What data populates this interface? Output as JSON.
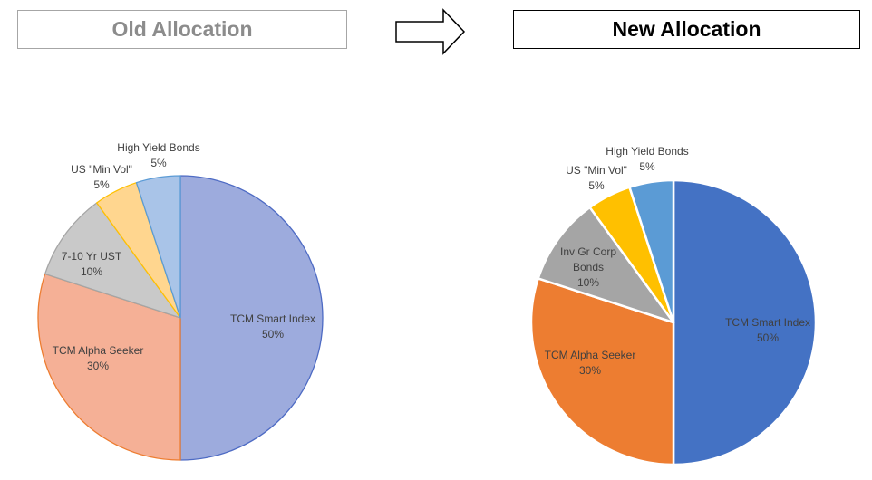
{
  "old_chart": {
    "heading": "Old Allocation",
    "chart_data": {
      "type": "pie",
      "categories": [
        "TCM Smart Index",
        "TCM Alpha Seeker",
        "7-10 Yr UST",
        "US \"Min Vol\"",
        "High Yield Bonds"
      ],
      "values": [
        50,
        30,
        10,
        5,
        5
      ],
      "value_labels": [
        "50%",
        "30%",
        "10%",
        "5%",
        "5%"
      ],
      "colors": [
        "#9dabdd",
        "#f5b096",
        "#c9c9c9",
        "#ffd68f",
        "#a9c4e8"
      ],
      "edge_colors": [
        "#4e6bc4",
        "#ed7d31",
        "#a5a5a5",
        "#ffc000",
        "#5b9bd5"
      ]
    }
  },
  "new_chart": {
    "heading": "New Allocation",
    "chart_data": {
      "type": "pie",
      "categories": [
        "TCM Smart Index",
        "TCM Alpha Seeker",
        "Inv Gr Corp Bonds",
        "US \"Min Vol\"",
        "High Yield Bonds"
      ],
      "values": [
        50,
        30,
        10,
        5,
        5
      ],
      "value_labels": [
        "50%",
        "30%",
        "10%",
        "5%",
        "5%"
      ],
      "colors": [
        "#4472c4",
        "#ed7d31",
        "#a5a5a5",
        "#ffc000",
        "#5b9bd5"
      ],
      "edge_colors": [
        "#ffffff",
        "#ffffff",
        "#ffffff",
        "#ffffff",
        "#ffffff"
      ]
    }
  },
  "arrow_icon": "right-arrow-icon"
}
